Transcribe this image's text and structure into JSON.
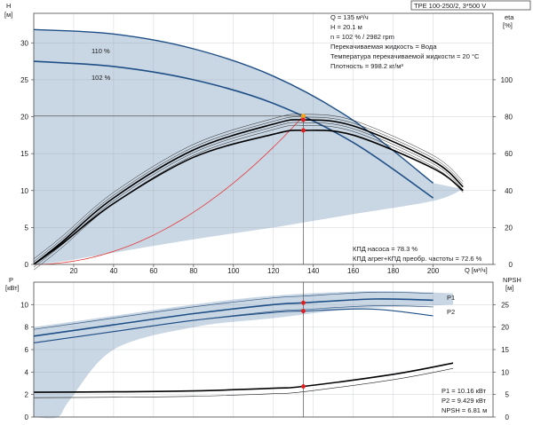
{
  "header": {
    "model": "TPE 100-250/2, 3*500 V"
  },
  "colors": {
    "envelope": "#c9d6e3",
    "blue_curve": "#1e4f86",
    "black_curve": "#000000",
    "system_curve": "#e43a3a",
    "operating_point": "#e01e1e",
    "grid": "#9aa3ad",
    "frame": "#4a4a4a"
  },
  "upper_info": [
    "Q = 135 м³/ч",
    "H = 20.1 м",
    "n = 102 % / 2982 rpm",
    "Перекачиваемая жидкость = Вода",
    "Температура перекачиваемой жидкости = 20 °C",
    "Плотность = 998.2 кг/м³"
  ],
  "upper_efficiency_info": [
    "КПД насоса = 78.3 %",
    "КПД агрег+КПД преобр. частоты = 72.6 %"
  ],
  "lower_info": [
    "P1 = 10.16 кВт",
    "P2 = 9.429 кВт",
    "NPSH = 6.81 м"
  ],
  "axis_labels": {
    "h_title": "H",
    "h_unit": "[м]",
    "eta_title": "eta",
    "eta_unit": "[%]",
    "q_title": "Q [м³/ч]",
    "p_title": "P",
    "p_unit": "[кВт]",
    "npsh_title": "NPSH",
    "npsh_unit": "[м]"
  },
  "curve_labels": {
    "h110": "110 %",
    "h102": "102 %",
    "p1": "P1",
    "p2": "P2"
  },
  "chart_data": [
    {
      "type": "line",
      "xlabel": "Q [м³/ч]",
      "ylabel": "H [м]",
      "y2label": "eta [%]",
      "xlim": [
        0,
        230
      ],
      "ylim": [
        0,
        34
      ],
      "y2lim": [
        0,
        136
      ],
      "x_ticks": [
        20,
        40,
        60,
        80,
        100,
        120,
        140,
        160,
        180,
        200
      ],
      "y_ticks": [
        0,
        5,
        10,
        15,
        20,
        25,
        30
      ],
      "y2_ticks": [
        0,
        20,
        40,
        60,
        80,
        100
      ],
      "grid": true,
      "operating_point": {
        "Q": 135,
        "H": 20.1,
        "eta_pump": 78.3,
        "eta_total": 72.6
      },
      "series": [
        {
          "name": "110 %",
          "x": [
            0,
            40,
            80,
            120,
            160,
            200
          ],
          "y": [
            31.8,
            31.2,
            29.2,
            25.5,
            19.5,
            11.0
          ]
        },
        {
          "name": "102 %",
          "x": [
            0,
            40,
            80,
            120,
            160,
            200
          ],
          "y": [
            27.5,
            26.8,
            25.0,
            21.8,
            16.5,
            9.0
          ]
        },
        {
          "x": [
            0,
            135
          ],
          "y": [
            0,
            20.1
          ]
        },
        {
          "x": [
            0,
            14,
            40,
            80,
            120,
            135,
            160,
            200,
            215
          ],
          "y": [
            0,
            12,
            36,
            62,
            76,
            78.3,
            75,
            56,
            42
          ]
        },
        {
          "x": [
            0,
            14,
            40,
            80,
            120,
            135,
            160,
            200,
            215
          ],
          "y": [
            0,
            11,
            33,
            58,
            70.5,
            72.6,
            70,
            52,
            40
          ]
        }
      ]
    },
    {
      "type": "line",
      "xlim": [
        0,
        230
      ],
      "ylim": [
        0,
        12
      ],
      "y2lim": [
        0,
        30
      ],
      "y_ticks": [
        0,
        2,
        4,
        6,
        8,
        10
      ],
      "y2_ticks": [
        0,
        5,
        10,
        15,
        20,
        25
      ],
      "grid": true,
      "operating_point": {
        "Q": 135,
        "P1": 10.16,
        "P2": 9.429,
        "NPSH": 6.81
      },
      "series": [
        {
          "name": "P1",
          "x": [
            0,
            40,
            80,
            120,
            135,
            170,
            200
          ],
          "y": [
            7.2,
            8.2,
            9.2,
            10.0,
            10.16,
            10.5,
            10.4
          ]
        },
        {
          "name": "P2",
          "x": [
            0,
            40,
            80,
            120,
            135,
            170,
            200
          ],
          "y": [
            6.6,
            7.6,
            8.6,
            9.3,
            9.429,
            9.6,
            9.0
          ]
        },
        {
          "x": [
            0,
            40,
            80,
            120,
            135,
            180,
            210
          ],
          "y": [
            5.5,
            5.6,
            5.8,
            6.4,
            6.81,
            9.5,
            12.0
          ]
        }
      ]
    }
  ]
}
